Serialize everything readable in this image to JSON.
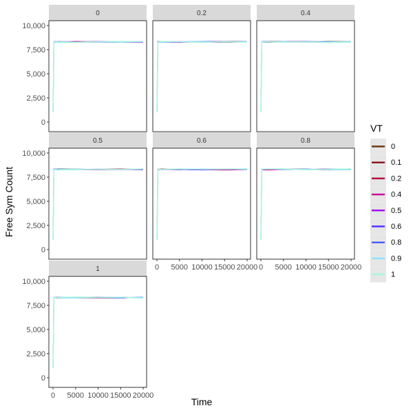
{
  "chart_data": {
    "type": "line",
    "facet_by": "VT",
    "facet_titles": [
      "0",
      "0.2",
      "0.4",
      "0.5",
      "0.6",
      "0.8",
      "1"
    ],
    "xlabel": "Time",
    "ylabel": "Free Sym Count",
    "xlim": [
      0,
      20000
    ],
    "ylim": [
      0,
      10000
    ],
    "x_ticks": [
      0,
      5000,
      10000,
      15000,
      20000
    ],
    "x_tick_labels": [
      "0",
      "5000",
      "10000",
      "15000",
      "20000"
    ],
    "y_ticks": [
      0,
      2500,
      5000,
      7500,
      10000
    ],
    "y_tick_labels": [
      "0",
      "2,500",
      "5,000",
      "7,500",
      "10,000"
    ],
    "grid": false,
    "legend": {
      "title": "VT",
      "position": "right",
      "entries": [
        {
          "label": "0",
          "color": "#6b3a10"
        },
        {
          "label": "0.1",
          "color": "#8b1a1a"
        },
        {
          "label": "0.2",
          "color": "#b0103a"
        },
        {
          "label": "0.4",
          "color": "#c8109a"
        },
        {
          "label": "0.5",
          "color": "#a010f0"
        },
        {
          "label": "0.6",
          "color": "#5530ff"
        },
        {
          "label": "0.8",
          "color": "#4a60ff"
        },
        {
          "label": "0.9",
          "color": "#90e0ff"
        },
        {
          "label": "1",
          "color": "#a8f5e0"
        }
      ]
    },
    "series_shape": {
      "x": [
        0,
        100,
        200,
        400,
        1000,
        5000,
        10000,
        15000,
        20000
      ],
      "y": [
        1000,
        4500,
        8300,
        8300,
        8300,
        8300,
        8300,
        8300,
        8300
      ]
    }
  }
}
